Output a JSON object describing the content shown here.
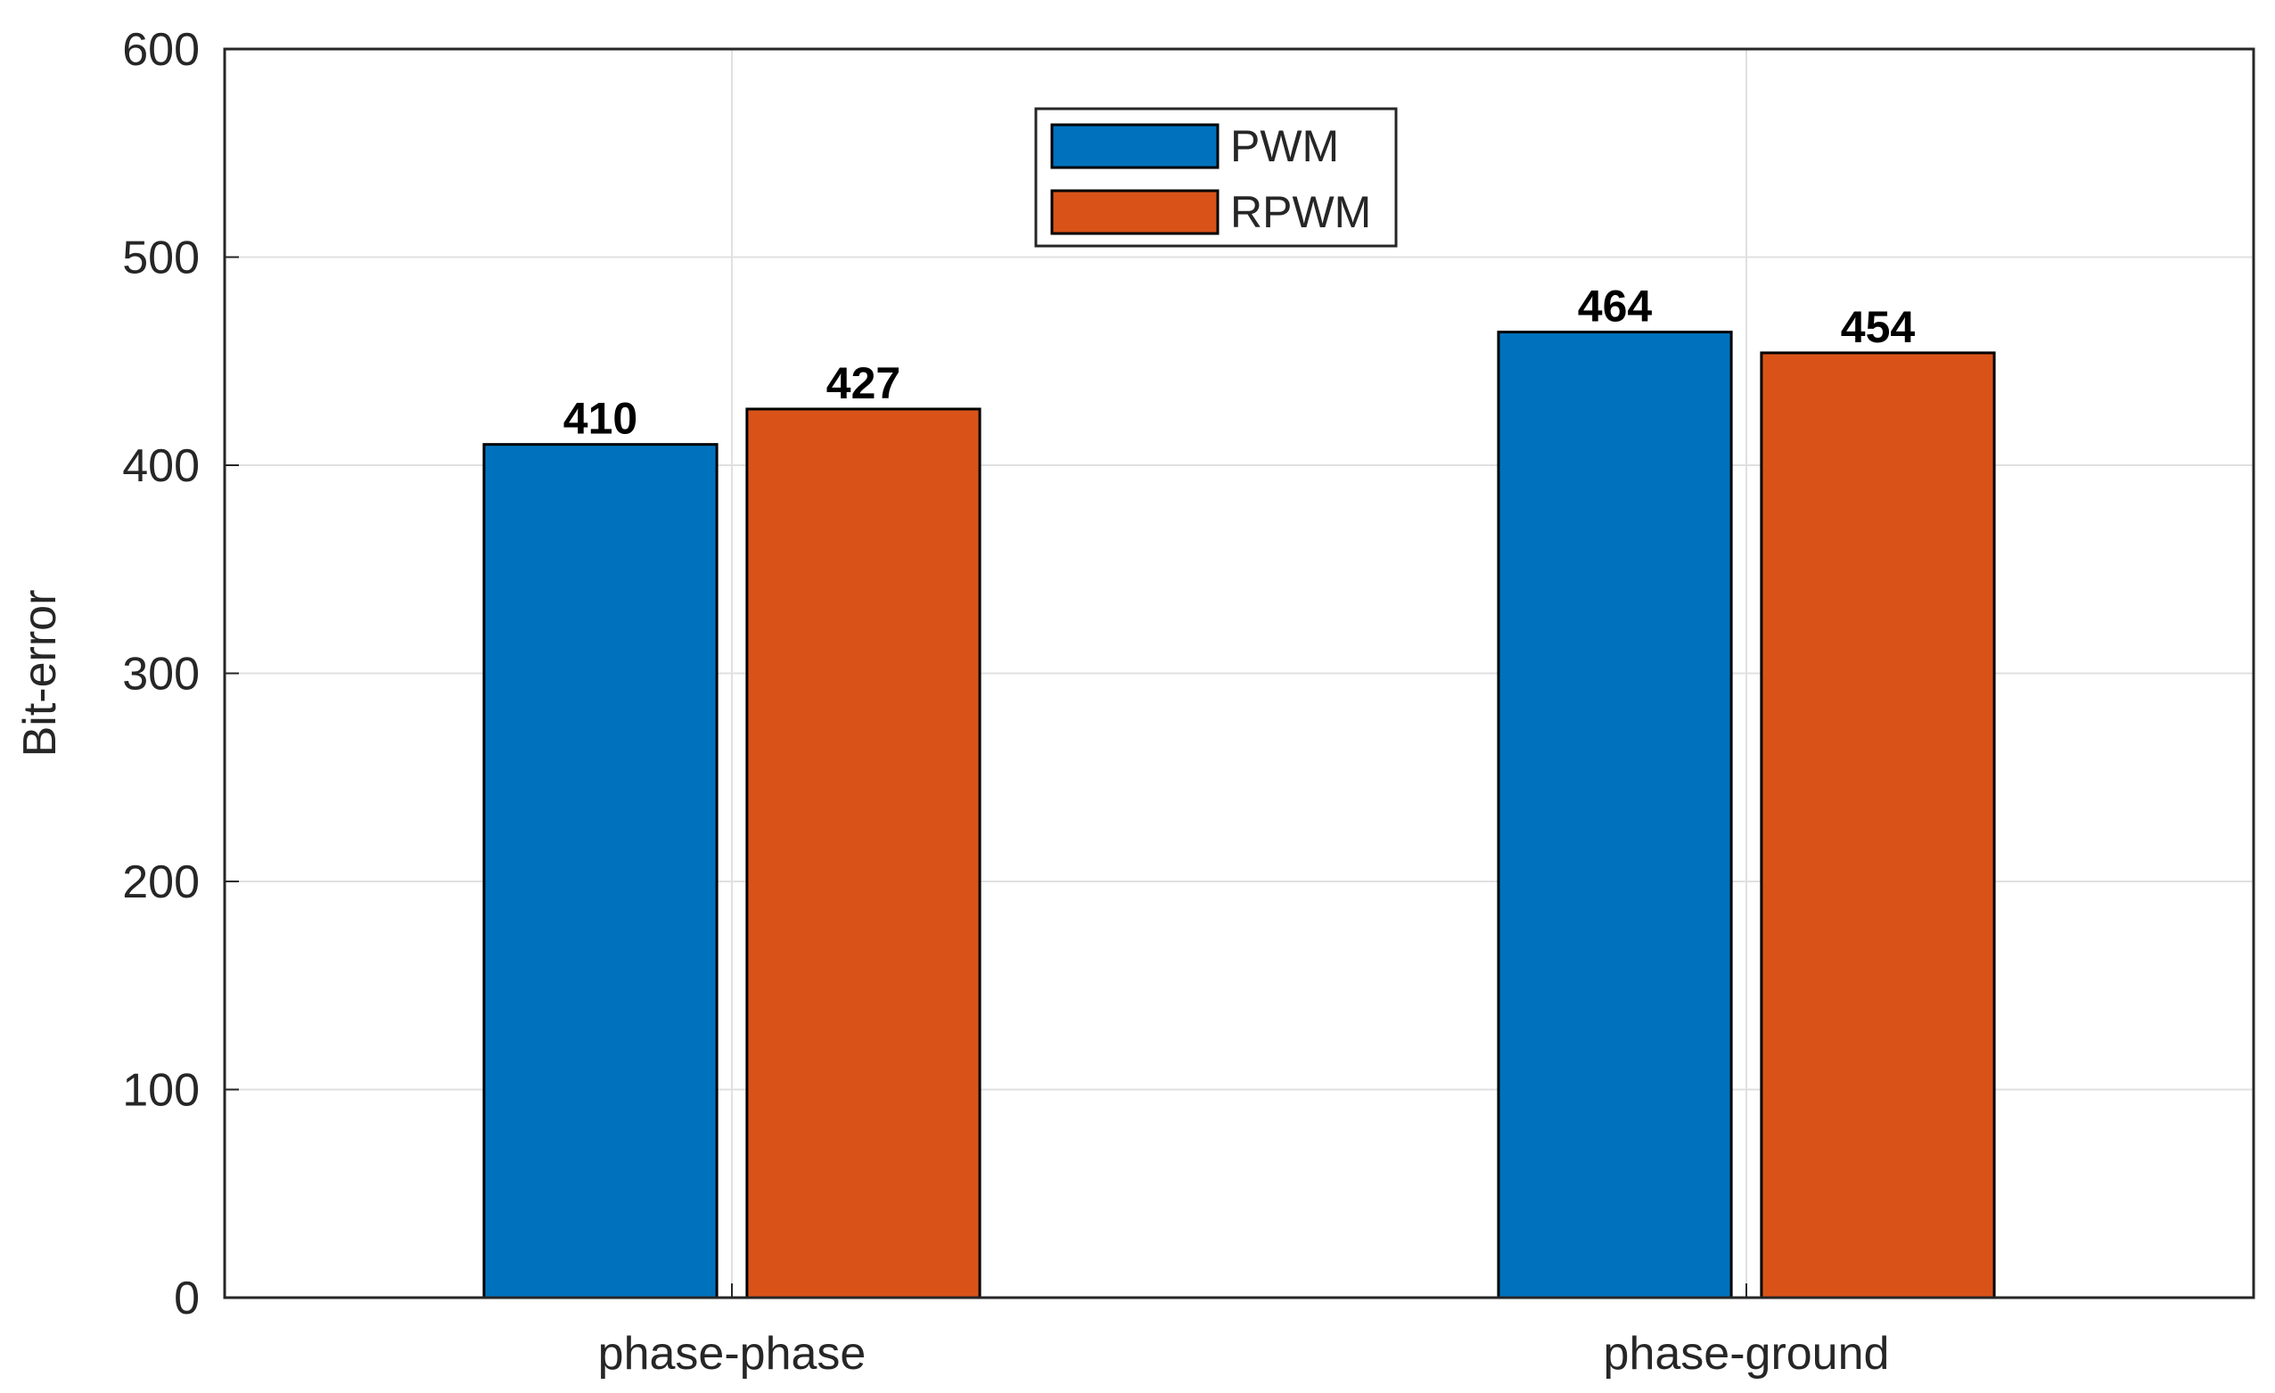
{
  "chart_data": {
    "type": "bar",
    "categories": [
      "phase-phase",
      "phase-ground"
    ],
    "series": [
      {
        "name": "PWM",
        "values": [
          410,
          464
        ],
        "color": "#0072BD"
      },
      {
        "name": "RPWM",
        "values": [
          427,
          454
        ],
        "color": "#D95319"
      }
    ],
    "title": "",
    "xlabel": "",
    "ylabel": "Bit-error",
    "ylim": [
      0,
      600
    ],
    "yticks": [
      0,
      100,
      200,
      300,
      400,
      500,
      600
    ],
    "grid": true,
    "legend_position": "top-center"
  }
}
